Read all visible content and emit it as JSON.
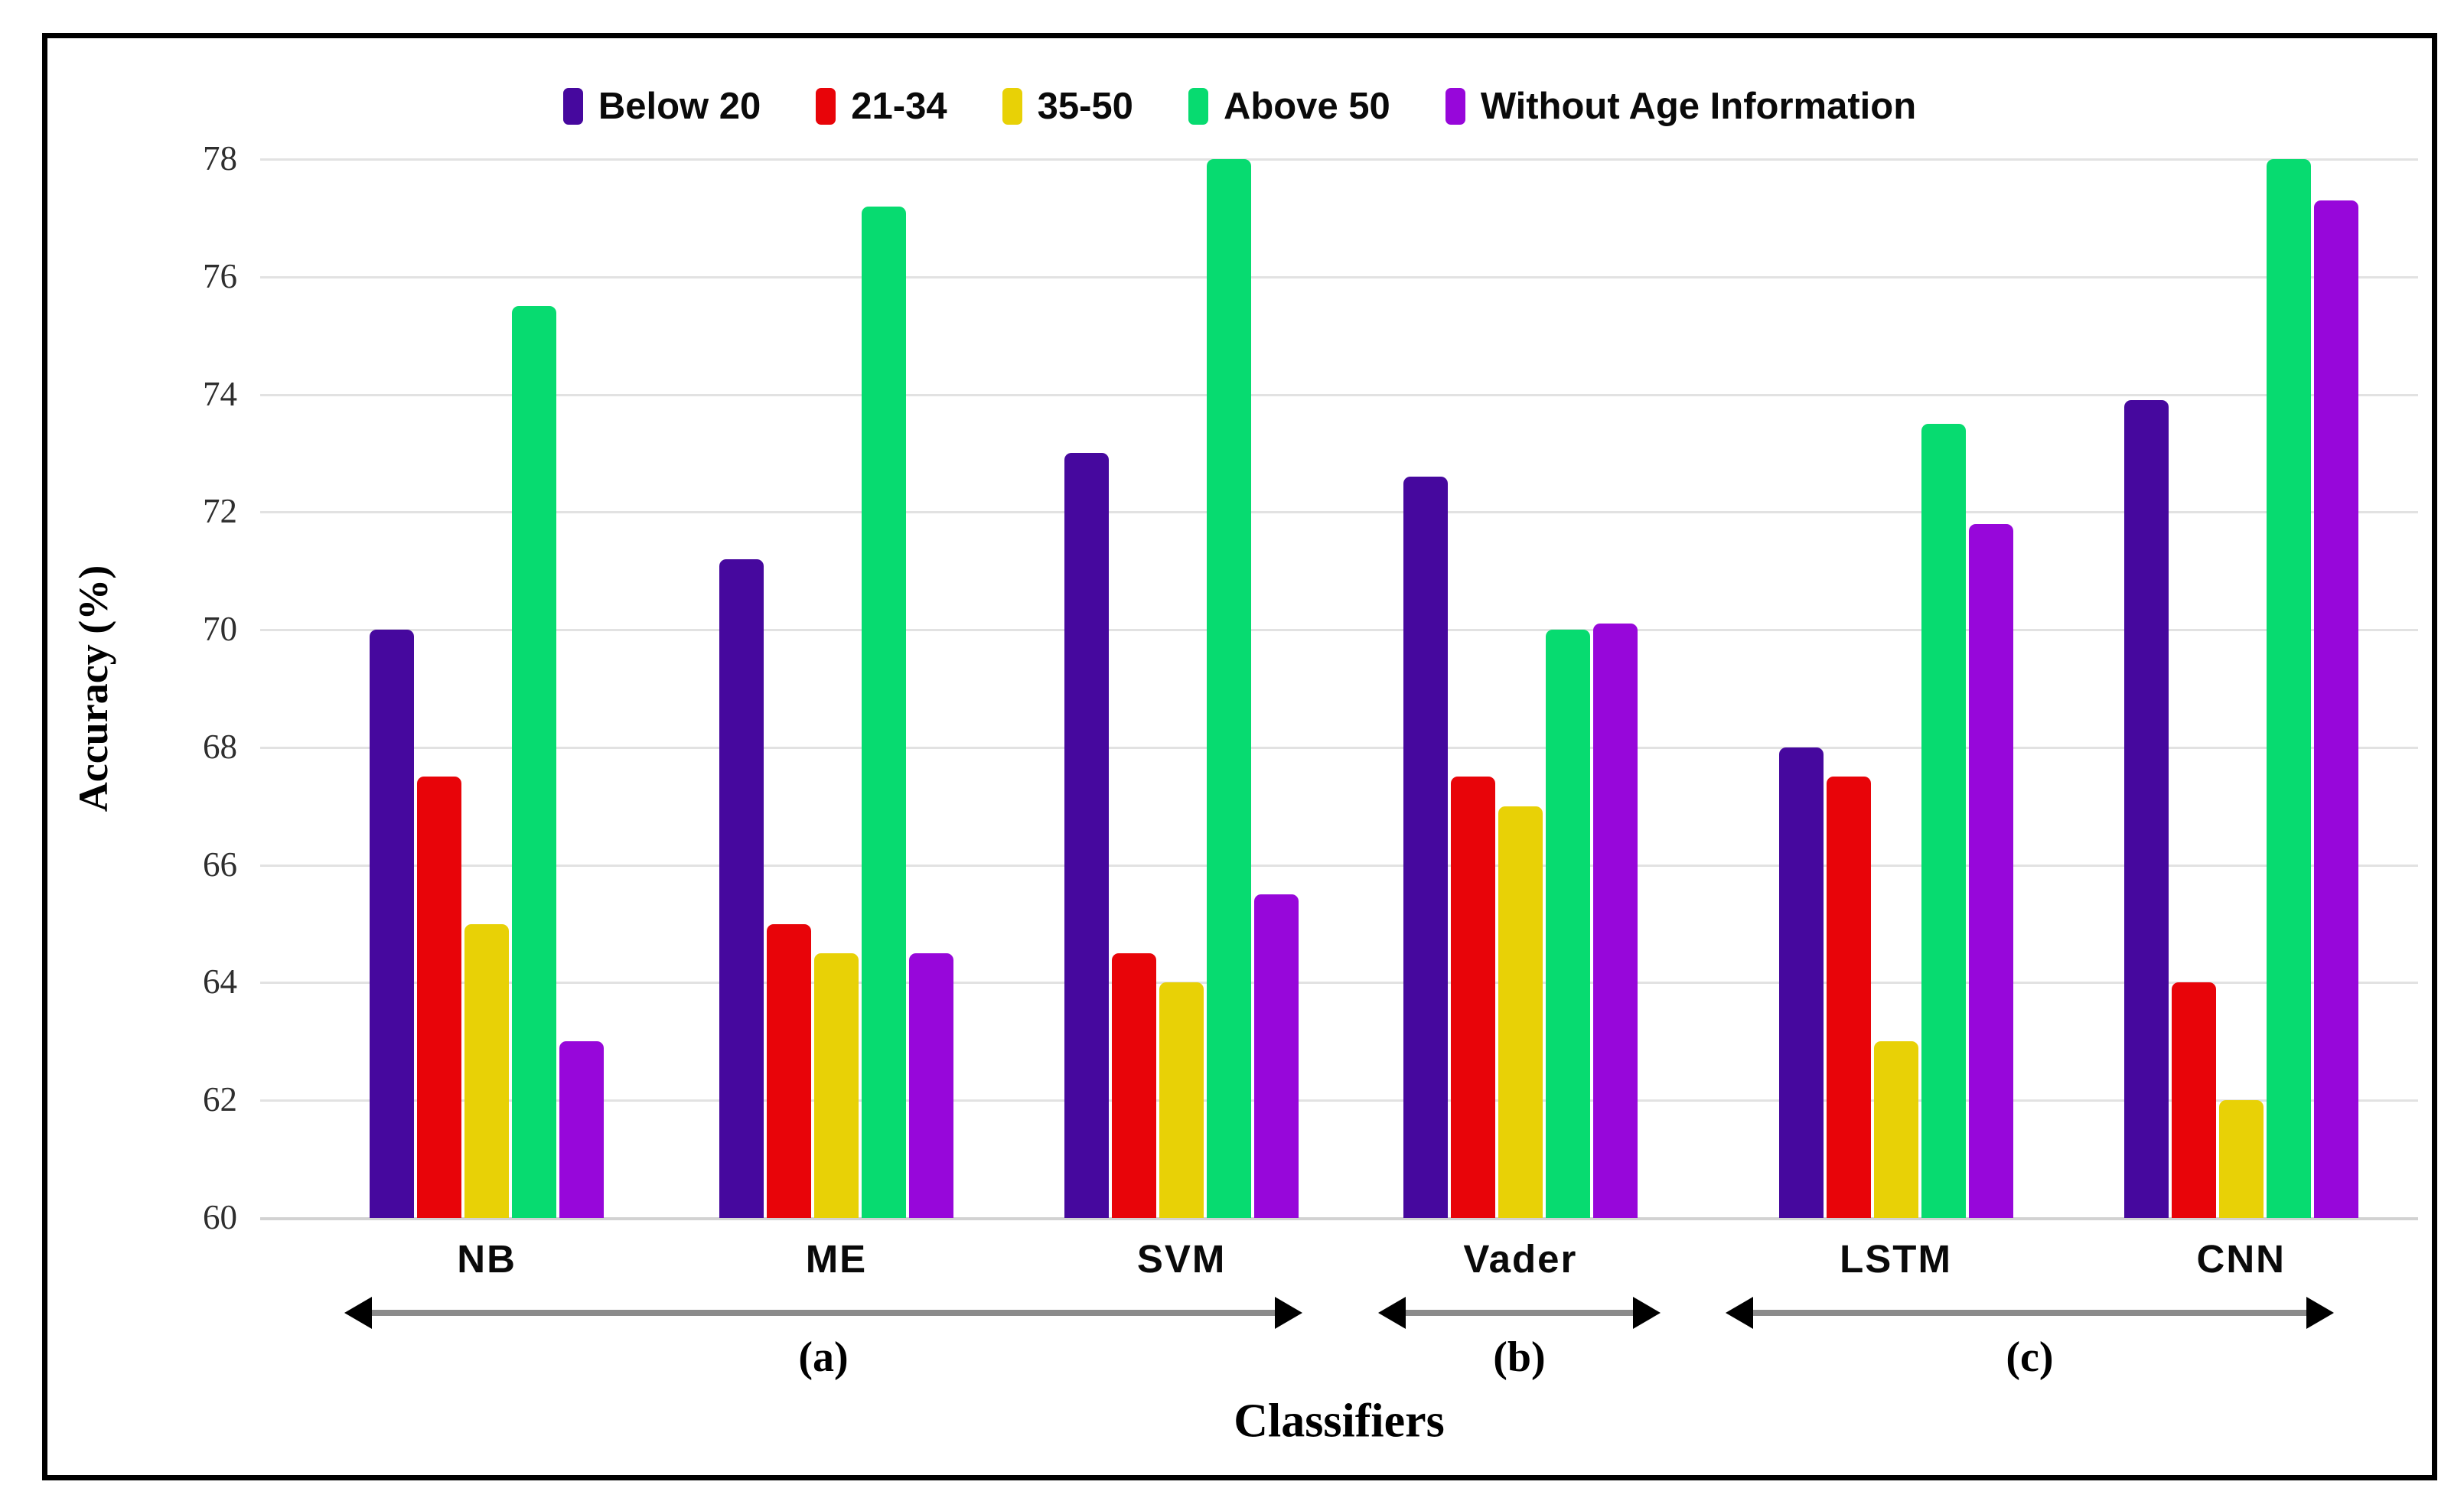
{
  "figure": {
    "background": "#ffffff",
    "border_color": "#000000"
  },
  "legend": {
    "position": "top",
    "items": [
      {
        "label": "Below 20",
        "color": "#46089E"
      },
      {
        "label": "21-34",
        "color": "#E80409"
      },
      {
        "label": "35-50",
        "color": "#E8D106"
      },
      {
        "label": "Above 50",
        "color": "#07DB70"
      },
      {
        "label": "Without Age Information",
        "color": "#9707DA"
      }
    ]
  },
  "chart_data": {
    "type": "bar",
    "title": "",
    "xlabel": "Classifiers",
    "ylabel": "Accuracy (%)",
    "ylim": [
      60,
      78
    ],
    "grid": true,
    "legend_position": "top",
    "categories": [
      "NB",
      "ME",
      "SVM",
      "Vader",
      "LSTM",
      "CNN"
    ],
    "y_ticks": [
      60,
      62,
      64,
      66,
      68,
      70,
      72,
      74,
      76,
      78
    ],
    "series": [
      {
        "name": "Below 20",
        "color": "#46089E",
        "values": [
          70.0,
          71.2,
          73.0,
          72.6,
          68.0,
          73.9
        ]
      },
      {
        "name": "21-34",
        "color": "#E80409",
        "values": [
          67.5,
          65.0,
          64.5,
          67.5,
          67.5,
          64.0
        ]
      },
      {
        "name": "35-50",
        "color": "#E8D106",
        "values": [
          65.0,
          64.5,
          64.0,
          67.0,
          63.0,
          62.0
        ]
      },
      {
        "name": "Above 50",
        "color": "#07DB70",
        "values": [
          75.5,
          77.2,
          78.0,
          70.0,
          73.5,
          78.0
        ]
      },
      {
        "name": "Without Age Information",
        "color": "#9707DA",
        "values": [
          63.0,
          64.5,
          65.5,
          70.1,
          71.8,
          77.3
        ]
      }
    ],
    "group_annotations": [
      {
        "label": "(a)",
        "groups": [
          "NB",
          "ME",
          "SVM"
        ]
      },
      {
        "label": "(b)",
        "groups": [
          "Vader"
        ]
      },
      {
        "label": "(c)",
        "groups": [
          "LSTM",
          "CNN"
        ]
      }
    ]
  }
}
